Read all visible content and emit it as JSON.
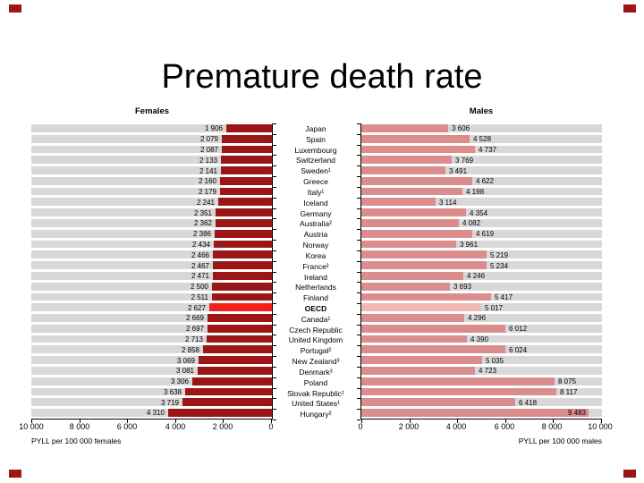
{
  "title": "Premature death rate",
  "colors": {
    "female_bar": "#9b1717",
    "female_bar_highlight": "#f32017",
    "male_bar": "#db8d8d",
    "male_bar_highlight": "#efb6b4",
    "row_stripe": "#d8d8d8",
    "corner_marker": "#9b1717"
  },
  "chart_data": {
    "type": "bar",
    "orientation": "horizontal",
    "title": "Premature death rate",
    "xlim": [
      0,
      10000
    ],
    "highlight_category": "OECD",
    "legend_position": "none",
    "grid": "row-stripes",
    "categories": [
      "Japan",
      "Spain",
      "Luxembourg",
      "Switzerland",
      "Sweden¹",
      "Greece",
      "Italy¹",
      "Iceland",
      "Germany",
      "Australia²",
      "Austria",
      "Norway",
      "Korea",
      "France²",
      "Ireland",
      "Netherlands",
      "Finland",
      "OECD",
      "Canada¹",
      "Czech Republic",
      "United Kingdom",
      "Portugal²",
      "New Zealand³",
      "Denmark³",
      "Poland",
      "Slovak Republic¹",
      "United States¹",
      "Hungary²"
    ],
    "series": [
      {
        "name": "Females",
        "direction": "right-to-left",
        "axis_label": "PYLL per 100 000 females",
        "tick_labels": [
          "10 000",
          "8 000",
          "6 000",
          "4 000",
          "2 000",
          "0"
        ],
        "values": [
          1906,
          2079,
          2087,
          2133,
          2141,
          2160,
          2179,
          2241,
          2351,
          2362,
          2386,
          2434,
          2466,
          2467,
          2471,
          2500,
          2511,
          2627,
          2669,
          2697,
          2713,
          2858,
          3069,
          3081,
          3306,
          3638,
          3719,
          4310
        ]
      },
      {
        "name": "Males",
        "direction": "left-to-right",
        "axis_label": "PYLL per 100 000 males",
        "tick_labels": [
          "0",
          "2 000",
          "4 000",
          "6 000",
          "8 000",
          "10 000"
        ],
        "values": [
          3606,
          4528,
          4737,
          3769,
          3491,
          4622,
          4198,
          3114,
          4354,
          4082,
          4619,
          3961,
          5219,
          5234,
          4246,
          3693,
          5417,
          5017,
          4296,
          6012,
          4390,
          6024,
          5035,
          4723,
          8075,
          8117,
          6418,
          9483
        ]
      }
    ]
  }
}
